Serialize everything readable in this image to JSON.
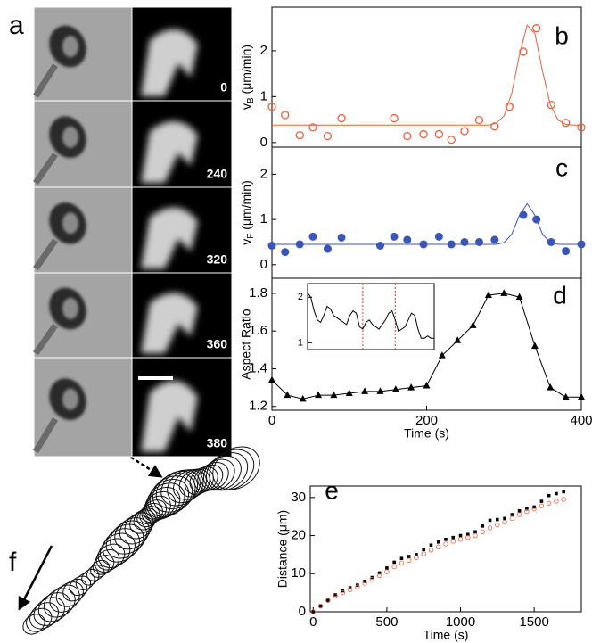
{
  "panel_a": {
    "label": "a",
    "times": [
      "0",
      "240",
      "320",
      "360",
      "380"
    ]
  },
  "panel_f": {
    "label": "f"
  },
  "chart_data": [
    {
      "type": "scatter",
      "label": "b",
      "ylabel": {
        "text": "v",
        "sub": "B",
        "unit": " (μm/min)"
      },
      "xlim": [
        0,
        400
      ],
      "ylim": [
        -0.1,
        2.95
      ],
      "yticks": [
        0,
        1,
        2
      ],
      "series": [
        {
          "mode": "markers",
          "marker": "circle-open",
          "color": "#e8603c",
          "x": [
            0,
            17,
            36,
            53,
            72,
            90,
            158,
            175,
            196,
            216,
            232,
            249,
            268,
            288,
            307,
            325,
            342,
            361,
            380,
            400
          ],
          "values": [
            0.78,
            0.6,
            0.16,
            0.33,
            0.14,
            0.53,
            0.53,
            0.14,
            0.18,
            0.18,
            0.06,
            0.25,
            0.49,
            0.35,
            0.78,
            1.98,
            2.49,
            0.82,
            0.43,
            0.33
          ]
        },
        {
          "mode": "line",
          "color": "#e8603c",
          "x": [
            0,
            280,
            290,
            300,
            310,
            320,
            330,
            340,
            350,
            360,
            370,
            380,
            390,
            400
          ],
          "values": [
            0.38,
            0.38,
            0.42,
            0.58,
            1.07,
            1.91,
            2.56,
            2.37,
            1.55,
            0.82,
            0.49,
            0.4,
            0.38,
            0.38
          ]
        }
      ]
    },
    {
      "type": "scatter",
      "label": "c",
      "ylabel": {
        "text": "v",
        "sub": "F",
        "unit": " (μm/min)"
      },
      "xlim": [
        0,
        400
      ],
      "ylim": [
        -0.3,
        2.6
      ],
      "yticks": [
        0,
        1,
        2
      ],
      "series": [
        {
          "mode": "markers",
          "marker": "circle",
          "color": "#3a55b8",
          "x": [
            0,
            17,
            36,
            53,
            72,
            90,
            140,
            158,
            175,
            196,
            216,
            232,
            249,
            268,
            288,
            325,
            342,
            361,
            380,
            400
          ],
          "values": [
            0.42,
            0.28,
            0.45,
            0.62,
            0.35,
            0.6,
            0.42,
            0.62,
            0.55,
            0.45,
            0.62,
            0.45,
            0.5,
            0.5,
            0.55,
            1.1,
            1.0,
            0.5,
            0.3,
            0.45
          ]
        },
        {
          "mode": "line",
          "color": "#3a55b8",
          "x": [
            0,
            290,
            300,
            310,
            320,
            330,
            340,
            350,
            360,
            370,
            400
          ],
          "values": [
            0.45,
            0.45,
            0.49,
            0.67,
            1.09,
            1.35,
            1.09,
            0.67,
            0.49,
            0.45,
            0.45
          ]
        }
      ]
    },
    {
      "type": "line",
      "label": "d",
      "ylabel": "Aspect Ratio",
      "xlabel": "Time (s)",
      "xlim": [
        0,
        400
      ],
      "ylim": [
        1.18,
        1.88
      ],
      "xticks": [
        0,
        200,
        400
      ],
      "yticks": [
        1.2,
        1.4,
        1.6,
        1.8
      ],
      "series": [
        {
          "mode": "line+markers",
          "marker": "triangle",
          "color": "#000000",
          "x": [
            0,
            20,
            40,
            60,
            80,
            100,
            120,
            140,
            160,
            180,
            200,
            220,
            240,
            260,
            280,
            300,
            320,
            340,
            360,
            380,
            400
          ],
          "values": [
            1.34,
            1.26,
            1.24,
            1.26,
            1.26,
            1.27,
            1.28,
            1.28,
            1.29,
            1.3,
            1.31,
            1.47,
            1.55,
            1.63,
            1.79,
            1.8,
            1.78,
            1.52,
            1.3,
            1.25,
            1.25
          ]
        }
      ]
    },
    {
      "type": "line",
      "xlim": [
        0,
        39
      ],
      "ylim": [
        0.85,
        2.3
      ],
      "yticks": [
        1,
        2
      ],
      "vlines": [
        17,
        27
      ],
      "vline_color": "#e03020",
      "series": [
        {
          "mode": "line",
          "color": "#000000",
          "values": [
            2.1,
            2.0,
            1.7,
            1.5,
            1.45,
            1.6,
            1.8,
            1.75,
            1.6,
            1.55,
            1.5,
            1.45,
            1.4,
            1.6,
            1.7,
            1.65,
            1.35,
            1.3,
            1.45,
            1.5,
            1.4,
            1.35,
            1.3,
            1.4,
            1.5,
            1.65,
            1.7,
            1.5,
            1.25,
            1.3,
            1.35,
            1.5,
            1.65,
            1.6,
            1.3,
            1.1,
            1.1,
            1.15,
            1.1,
            1.1
          ]
        }
      ]
    },
    {
      "type": "scatter",
      "label": "e",
      "ylabel": "Distance (μm)",
      "xlabel": "Time (s)",
      "xlim": [
        -20,
        1820
      ],
      "ylim": [
        0,
        33
      ],
      "xticks": [
        0,
        500,
        1000,
        1500
      ],
      "yticks": [
        0,
        10,
        20,
        30
      ],
      "series": [
        {
          "mode": "markers",
          "marker": "square",
          "color": "#000000",
          "x": [
            0,
            50,
            100,
            150,
            200,
            250,
            300,
            350,
            400,
            450,
            500,
            550,
            600,
            650,
            700,
            750,
            800,
            850,
            900,
            950,
            1000,
            1050,
            1100,
            1150,
            1200,
            1250,
            1300,
            1350,
            1400,
            1450,
            1500,
            1550,
            1600,
            1650,
            1700
          ],
          "values": [
            0,
            1.5,
            3,
            4.5,
            5.5,
            6.3,
            7,
            8,
            9,
            10.2,
            11.5,
            13,
            14,
            14.5,
            15,
            16.3,
            17.5,
            18.3,
            19,
            19.5,
            20,
            20.3,
            21,
            22.5,
            24,
            24.2,
            24.5,
            25.5,
            26.5,
            27,
            27.5,
            29,
            30.5,
            31,
            31.5
          ]
        },
        {
          "mode": "markers",
          "marker": "circle-open",
          "color": "#e8603c",
          "x": [
            0,
            50,
            100,
            150,
            200,
            250,
            300,
            350,
            400,
            450,
            500,
            550,
            600,
            650,
            700,
            750,
            800,
            850,
            900,
            950,
            1000,
            1050,
            1100,
            1150,
            1200,
            1250,
            1300,
            1350,
            1400,
            1450,
            1500,
            1550,
            1600,
            1650,
            1700
          ],
          "values": [
            0,
            1.5,
            3,
            4.2,
            5,
            5.8,
            6.5,
            7.5,
            8.5,
            9.5,
            10.5,
            11.8,
            12.8,
            13.5,
            14.2,
            15.2,
            16.2,
            17,
            17.8,
            18.5,
            19,
            19.5,
            20,
            21,
            22,
            22.8,
            23.5,
            24.5,
            25.5,
            26.3,
            27,
            27.8,
            28.5,
            29,
            29.5
          ]
        }
      ]
    }
  ]
}
